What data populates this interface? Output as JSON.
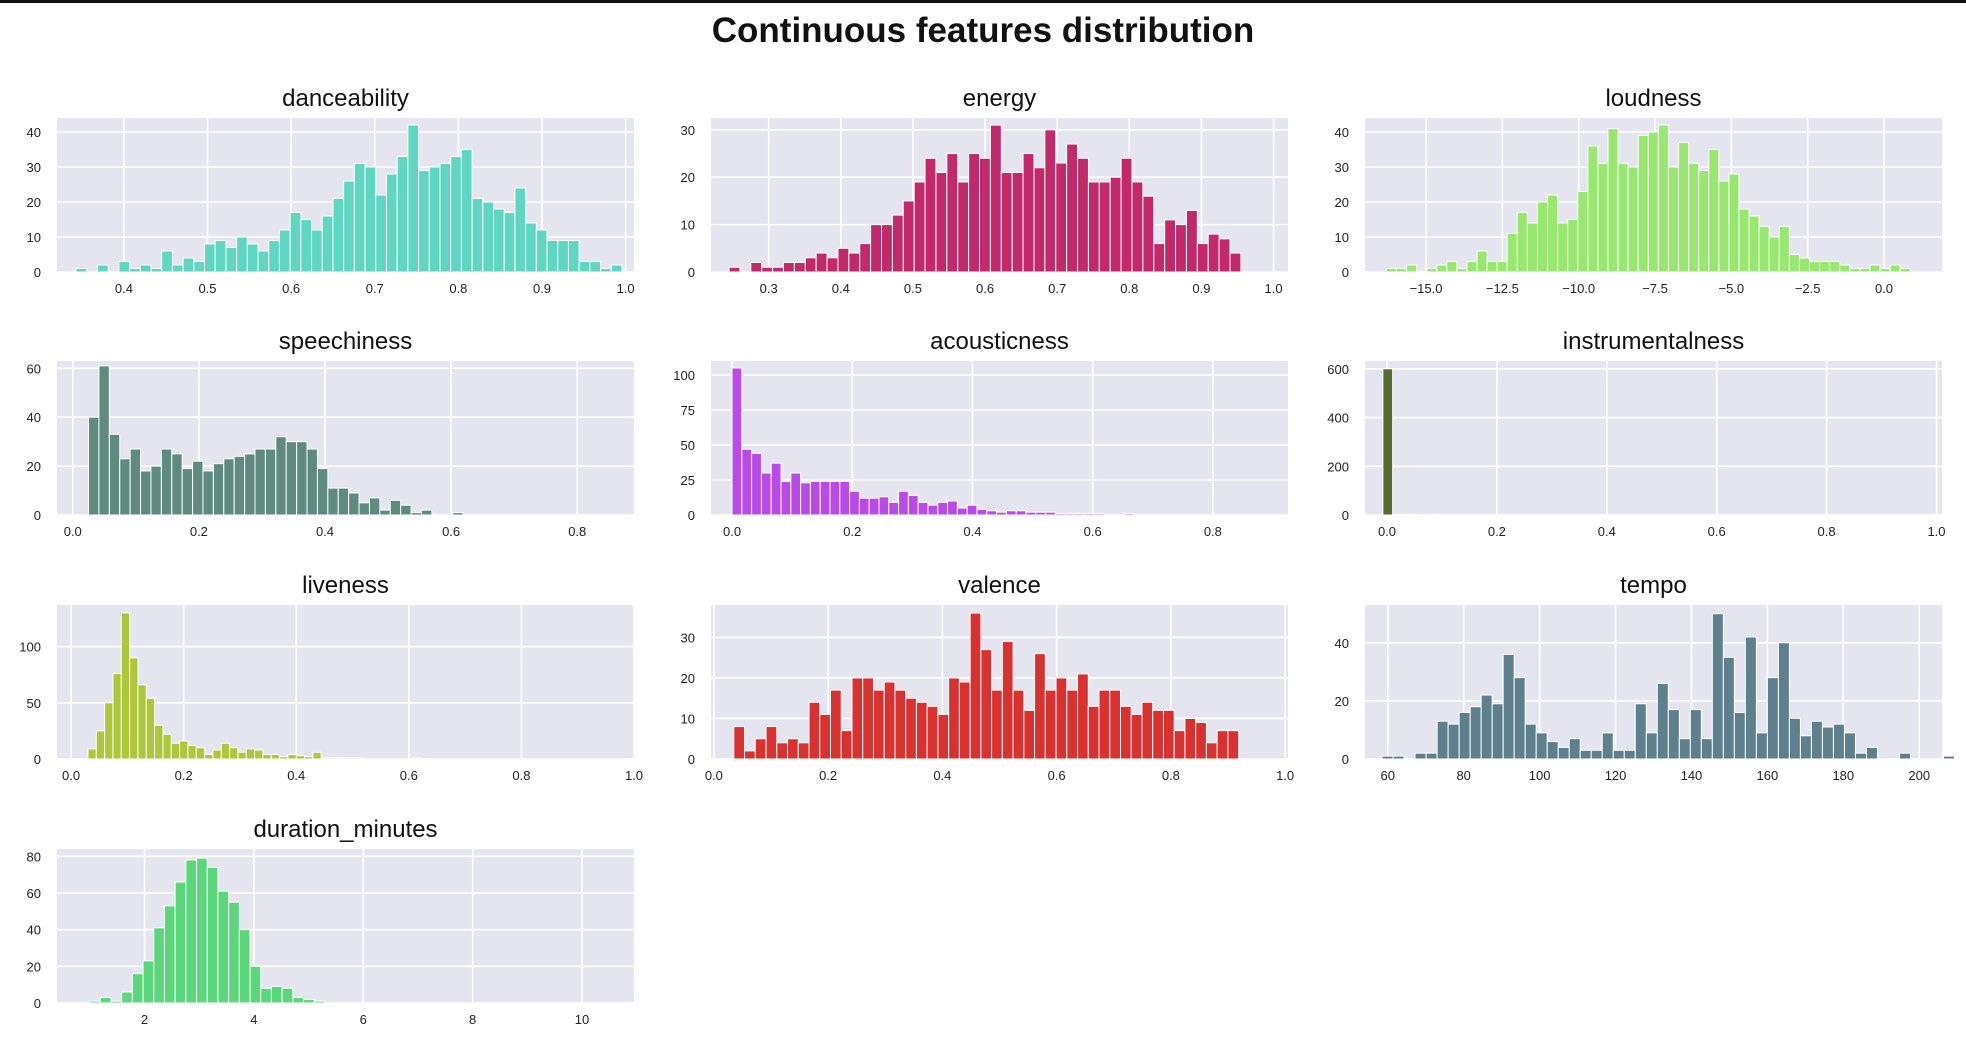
{
  "figure_title": "Continuous features distribution",
  "chart_data": [
    {
      "type": "bar",
      "title": "danceability",
      "color": "#5fd6c1",
      "xlim": [
        0.32,
        1.01
      ],
      "ylim": [
        0,
        44
      ],
      "xticks": [
        "0.4",
        "0.5",
        "0.6",
        "0.7",
        "0.8",
        "0.9",
        "1.0"
      ],
      "yticks": [
        "0",
        "10",
        "20",
        "30",
        "40"
      ],
      "bins": {
        "start": 0.33,
        "width": 0.0128
      },
      "values": [
        0,
        1,
        0,
        2,
        0,
        3,
        1,
        2,
        1,
        6,
        2,
        4,
        3,
        8,
        9,
        7,
        10,
        8,
        6,
        9,
        12,
        17,
        15,
        12,
        16,
        21,
        26,
        31,
        30,
        22,
        28,
        33,
        42,
        29,
        30,
        31,
        33,
        35,
        21,
        20,
        18,
        17,
        24,
        14,
        12,
        9,
        9,
        9,
        3,
        3,
        1,
        2
      ]
    },
    {
      "type": "bar",
      "title": "energy",
      "color": "#c2296b",
      "xlim": [
        0.22,
        1.02
      ],
      "ylim": [
        0,
        32.5
      ],
      "xticks": [
        "0.3",
        "0.4",
        "0.5",
        "0.6",
        "0.7",
        "0.8",
        "0.9",
        "1.0"
      ],
      "yticks": [
        "0",
        "10",
        "20",
        "30"
      ],
      "bins": {
        "start": 0.245,
        "width": 0.0151
      },
      "values": [
        1,
        0,
        2,
        1,
        1,
        2,
        2,
        3,
        4,
        3,
        5,
        4,
        6,
        10,
        10,
        12,
        15,
        19,
        24,
        21,
        25,
        19,
        25,
        24,
        31,
        21,
        21,
        25,
        22,
        30,
        23,
        27,
        24,
        19,
        19,
        20,
        24,
        19,
        16,
        6,
        11,
        10,
        13,
        6,
        8,
        7,
        4
      ]
    },
    {
      "type": "bar",
      "title": "loudness",
      "color": "#98e870",
      "xlim": [
        -17.0,
        1.9
      ],
      "ylim": [
        0,
        44
      ],
      "xticks": [
        "−15.0",
        "−12.5",
        "−10.0",
        "−7.5",
        "−5.0",
        "−2.5",
        "0.0"
      ],
      "yticks": [
        "0",
        "10",
        "20",
        "30",
        "40"
      ],
      "bins": {
        "start": -16.3,
        "width": 0.33
      },
      "values": [
        1,
        1,
        2,
        0,
        1,
        2,
        3,
        1,
        3,
        6,
        3,
        3,
        11,
        17,
        14,
        20,
        22,
        14,
        15,
        23,
        36,
        31,
        41,
        31,
        30,
        39,
        40,
        42,
        30,
        37,
        31,
        29,
        35,
        26,
        28,
        18,
        16,
        13,
        10,
        13,
        5,
        4,
        3,
        3,
        3,
        2,
        1,
        1,
        2,
        1,
        2,
        1
      ]
    },
    {
      "type": "bar",
      "title": "speechiness",
      "color": "#5f8a80",
      "xlim": [
        -0.025,
        0.89
      ],
      "ylim": [
        0,
        63
      ],
      "xticks": [
        "0.0",
        "0.2",
        "0.4",
        "0.6",
        "0.8"
      ],
      "yticks": [
        "0",
        "20",
        "40",
        "60"
      ],
      "bins": {
        "start": 0.025,
        "width": 0.0165
      },
      "values": [
        40,
        61,
        33,
        23,
        27,
        18,
        20,
        27,
        25,
        19,
        22,
        18,
        21,
        23,
        24,
        25,
        27,
        27,
        32,
        30,
        30,
        27,
        19,
        11,
        11,
        9,
        5,
        7,
        2,
        6,
        4,
        1,
        2,
        0,
        0,
        1,
        0,
        0,
        0,
        0,
        0,
        0,
        0,
        0,
        0,
        0,
        0,
        0,
        0,
        0,
        0
      ]
    },
    {
      "type": "bar",
      "title": "acousticness",
      "color": "#b94ae8",
      "xlim": [
        -0.035,
        0.925
      ],
      "ylim": [
        0,
        110
      ],
      "xticks": [
        "0.0",
        "0.2",
        "0.4",
        "0.6",
        "0.8"
      ],
      "yticks": [
        "0",
        "25",
        "50",
        "75",
        "100"
      ],
      "bins": {
        "start": 0.0,
        "width": 0.0163
      },
      "values": [
        105,
        47,
        44,
        30,
        37,
        24,
        30,
        23,
        24,
        24,
        24,
        24,
        17,
        12,
        12,
        13,
        9,
        17,
        14,
        9,
        7,
        9,
        10,
        5,
        7,
        4,
        3,
        2,
        3,
        3,
        2,
        2,
        2,
        1,
        1,
        1,
        1,
        1,
        0,
        0,
        1,
        0,
        0,
        0,
        0,
        0,
        0,
        0,
        0,
        0,
        0,
        0,
        0,
        0
      ]
    },
    {
      "type": "bar",
      "title": "instrumentalness",
      "color": "#566b30",
      "xlim": [
        -0.04,
        1.01
      ],
      "ylim": [
        0,
        632
      ],
      "xticks": [
        "0.0",
        "0.2",
        "0.4",
        "0.6",
        "0.8",
        "1.0"
      ],
      "yticks": [
        "0",
        "200",
        "400",
        "600"
      ],
      "bins": {
        "start": -0.0075,
        "width": 0.0178
      },
      "values": [
        600,
        2,
        1,
        1,
        0,
        1,
        0,
        0,
        0,
        0,
        0,
        0,
        0,
        0,
        0,
        0,
        0,
        0,
        0,
        0,
        0,
        0,
        0,
        0,
        0,
        0,
        0,
        0,
        0,
        0,
        0,
        0,
        0,
        0,
        0,
        0,
        0,
        0,
        0,
        0,
        0,
        0,
        0,
        0,
        0,
        0,
        0,
        0,
        0,
        0,
        0,
        0,
        0,
        0,
        0
      ]
    },
    {
      "type": "bar",
      "title": "liveness",
      "color": "#aec63a",
      "xlim": [
        -0.025,
        1.0
      ],
      "ylim": [
        0,
        137
      ],
      "xticks": [
        "0.0",
        "0.2",
        "0.4",
        "0.6",
        "0.8",
        "1.0"
      ],
      "yticks": [
        "0",
        "50",
        "100"
      ],
      "bins": {
        "start": 0.03,
        "width": 0.0148
      },
      "values": [
        9,
        25,
        50,
        76,
        130,
        90,
        66,
        54,
        30,
        22,
        14,
        16,
        12,
        10,
        4,
        8,
        14,
        10,
        6,
        9,
        8,
        4,
        4,
        2,
        4,
        3,
        2,
        6,
        1,
        1,
        1,
        1,
        1,
        0,
        0,
        0,
        0,
        0,
        0,
        1,
        0,
        0,
        0,
        0,
        0,
        0,
        0,
        0,
        0,
        0,
        0,
        0,
        0,
        0
      ]
    },
    {
      "type": "bar",
      "title": "valence",
      "color": "#d93030",
      "xlim": [
        -0.005,
        1.005
      ],
      "ylim": [
        0,
        38
      ],
      "xticks": [
        "0.0",
        "0.2",
        "0.4",
        "0.6",
        "0.8",
        "1.0"
      ],
      "yticks": [
        "0",
        "10",
        "20",
        "30"
      ],
      "bins": {
        "start": 0.035,
        "width": 0.0188
      },
      "values": [
        8,
        2,
        5,
        8,
        4,
        5,
        4,
        14,
        11,
        17,
        7,
        20,
        20,
        17,
        19,
        17,
        15,
        14,
        13,
        11,
        20,
        19,
        36,
        27,
        17,
        29,
        17,
        12,
        26,
        17,
        20,
        17,
        21,
        13,
        17,
        17,
        13,
        11,
        14,
        12,
        12,
        7,
        10,
        9,
        4,
        7,
        7
      ]
    },
    {
      "type": "bar",
      "title": "tempo",
      "color": "#5e7f8c",
      "xlim": [
        54,
        206
      ],
      "ylim": [
        0,
        53
      ],
      "xticks": [
        "60",
        "80",
        "100",
        "120",
        "140",
        "160",
        "180",
        "200"
      ],
      "yticks": [
        "0",
        "20",
        "40"
      ],
      "bins": {
        "start": 58.5,
        "width": 2.9
      },
      "values": [
        1,
        1,
        0,
        2,
        2,
        13,
        12,
        16,
        18,
        22,
        19,
        36,
        28,
        12,
        9,
        6,
        4,
        7,
        3,
        3,
        9,
        3,
        3,
        19,
        9,
        26,
        17,
        7,
        17,
        7,
        50,
        35,
        16,
        42,
        9,
        28,
        40,
        14,
        8,
        13,
        11,
        12,
        9,
        2,
        4,
        0,
        0,
        2,
        0,
        0,
        0,
        1
      ]
    },
    {
      "type": "bar",
      "title": "duration_minutes",
      "color": "#5bd77b",
      "xlim": [
        0.4,
        10.95
      ],
      "ylim": [
        0,
        84
      ],
      "xticks": [
        "2",
        "4",
        "6",
        "8",
        "10"
      ],
      "yticks": [
        "0",
        "20",
        "40",
        "60",
        "80"
      ],
      "bins": {
        "start": 0.8,
        "width": 0.1956
      },
      "values": [
        0,
        1,
        3,
        1,
        6,
        16,
        23,
        41,
        53,
        66,
        78,
        79,
        74,
        61,
        55,
        40,
        20,
        8,
        9,
        8,
        3,
        2,
        1,
        0,
        0,
        0,
        0,
        0,
        0,
        0,
        0,
        0,
        0,
        0,
        0,
        0,
        0,
        0,
        0,
        0,
        0,
        0,
        0,
        0,
        0,
        0,
        0,
        0,
        0,
        0,
        0,
        0
      ]
    }
  ]
}
